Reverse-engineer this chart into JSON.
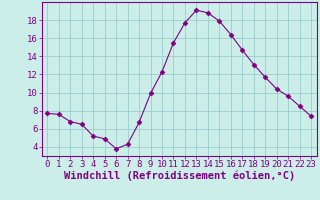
{
  "x": [
    0,
    1,
    2,
    3,
    4,
    5,
    6,
    7,
    8,
    9,
    10,
    11,
    12,
    13,
    14,
    15,
    16,
    17,
    18,
    19,
    20,
    21,
    22,
    23
  ],
  "y": [
    7.7,
    7.6,
    6.8,
    6.5,
    5.2,
    4.9,
    3.8,
    4.3,
    6.7,
    9.9,
    12.3,
    15.5,
    17.7,
    19.1,
    18.8,
    17.9,
    16.4,
    14.7,
    13.1,
    11.7,
    10.4,
    9.6,
    8.5,
    7.4
  ],
  "xlabel": "Windchill (Refroidissement éolien,°C)",
  "xlim": [
    -0.5,
    23.5
  ],
  "ylim": [
    3.0,
    20.0
  ],
  "yticks": [
    4,
    6,
    8,
    10,
    12,
    14,
    16,
    18
  ],
  "xticks": [
    0,
    1,
    2,
    3,
    4,
    5,
    6,
    7,
    8,
    9,
    10,
    11,
    12,
    13,
    14,
    15,
    16,
    17,
    18,
    19,
    20,
    21,
    22,
    23
  ],
  "line_color": "#800080",
  "marker": "D",
  "marker_size": 2.5,
  "bg_color": "#cceee8",
  "grid_color": "#99cccc",
  "label_color": "#800080",
  "tick_color": "#800080",
  "spine_color": "#800080",
  "xlabel_fontsize": 7.5,
  "tick_fontsize": 6.5
}
